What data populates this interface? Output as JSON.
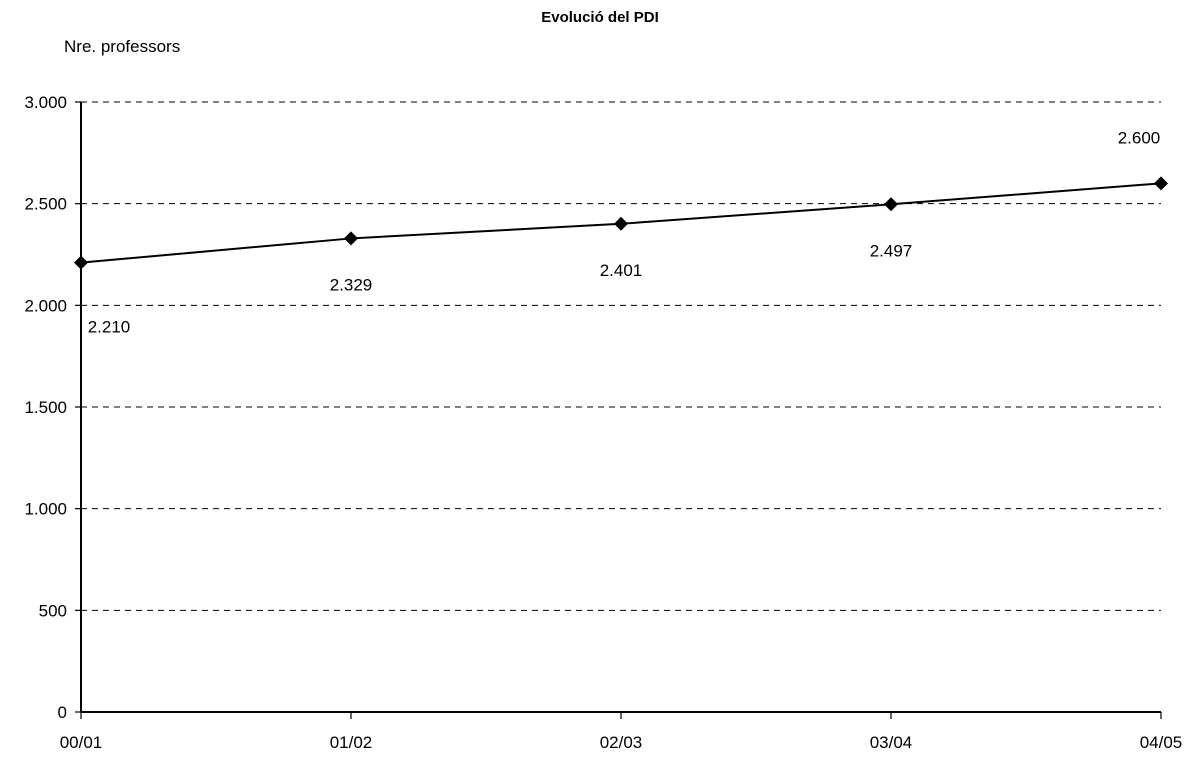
{
  "chart_data": {
    "type": "line",
    "title": "Evolució del PDI",
    "ylabel": "Nre. professors",
    "xlabel": "",
    "categories": [
      "00/01",
      "01/02",
      "02/03",
      "03/04",
      "04/05"
    ],
    "series": [
      {
        "values": [
          2210,
          2329,
          2401,
          2497,
          2600
        ],
        "data_labels": [
          "2.210",
          "2.329",
          "2.401",
          "2.497",
          "2.600"
        ],
        "color": "#000000",
        "marker": "diamond"
      }
    ],
    "ylim": [
      0,
      3000
    ],
    "yticks": [
      0,
      500,
      1000,
      1500,
      2000,
      2500,
      3000
    ],
    "ytick_labels": [
      "0",
      "500",
      "1.000",
      "1.500",
      "2.000",
      "2.500",
      "3.000"
    ],
    "grid": "horizontal-dashed",
    "legend": "none"
  }
}
